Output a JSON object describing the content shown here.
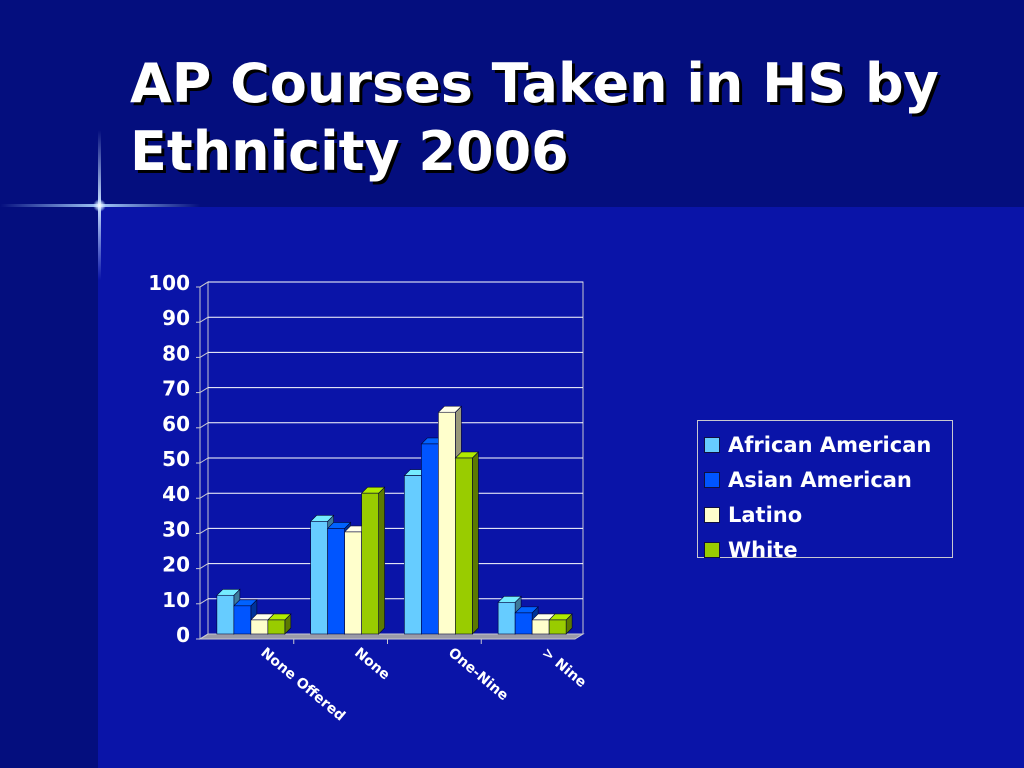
{
  "slide": {
    "title": "AP Courses Taken in HS by Ethnicity 2006"
  },
  "chart_data": {
    "type": "bar",
    "title": "",
    "xlabel": "",
    "ylabel": "",
    "ylim": [
      0,
      100
    ],
    "yticks": [
      "0",
      "10",
      "20",
      "30",
      "40",
      "50",
      "60",
      "70",
      "80",
      "90",
      "100"
    ],
    "grid": true,
    "legend_position": "right",
    "categories": [
      "None Offered",
      "None",
      "One-Nine",
      "> Nine"
    ],
    "series": [
      {
        "name": "African American",
        "color": "#66ccff",
        "values": [
          11,
          32,
          45,
          9
        ]
      },
      {
        "name": "Asian American",
        "color": "#0055ff",
        "values": [
          8,
          30,
          54,
          6
        ]
      },
      {
        "name": "Latino",
        "color": "#ffffcc",
        "values": [
          4,
          29,
          63,
          4
        ]
      },
      {
        "name": "White",
        "color": "#99cc00",
        "values": [
          4,
          40,
          50,
          4
        ]
      }
    ]
  },
  "colors": {
    "background": "#0a14a8",
    "title_band": "#040e7e",
    "text": "#ffffff",
    "gridline": "#ffffff",
    "axis": "#c8c8d0"
  }
}
